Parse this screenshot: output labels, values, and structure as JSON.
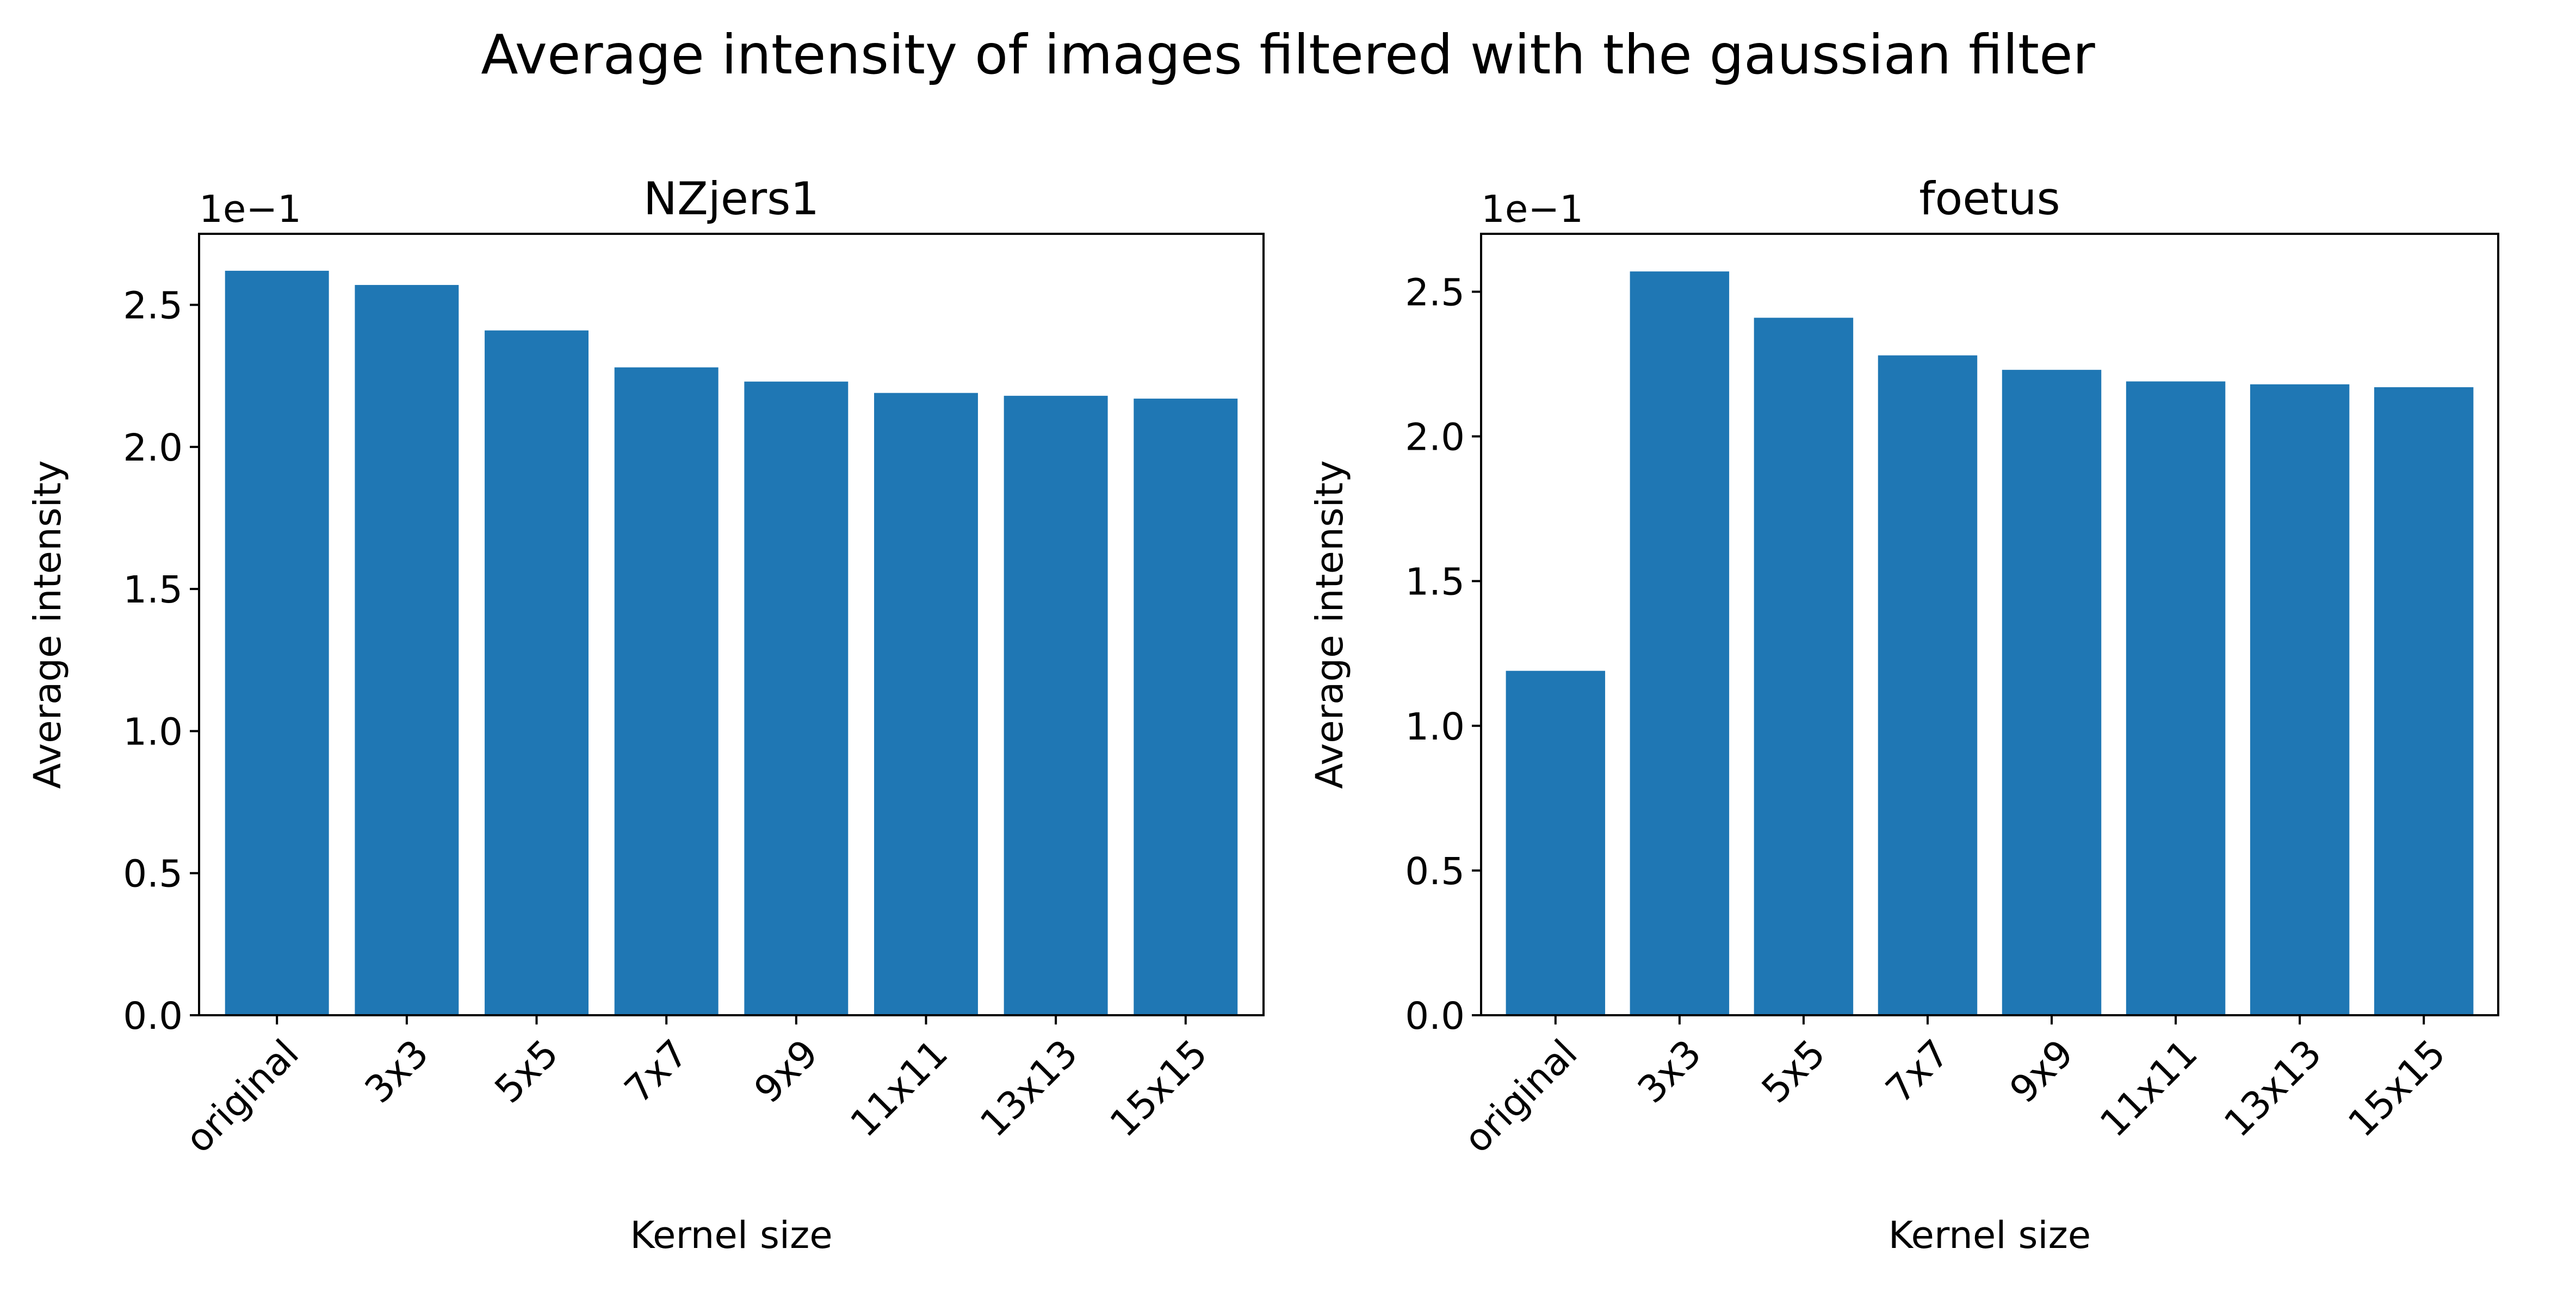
{
  "figure": {
    "title": "Average intensity of images filtered with the gaussian filter",
    "bar_color": "#1f77b4"
  },
  "chart_data": [
    {
      "type": "bar",
      "title": "NZjers1",
      "xlabel": "Kernel size",
      "ylabel": "Average intensity",
      "offset_label": "1e−1",
      "categories": [
        "original",
        "3x3",
        "5x5",
        "7x7",
        "9x9",
        "11x11",
        "13x13",
        "15x15"
      ],
      "values": [
        2.62,
        2.57,
        2.41,
        2.28,
        2.23,
        2.19,
        2.18,
        2.17
      ],
      "ylim": [
        0,
        2.75
      ],
      "yticks": [
        0.0,
        0.5,
        1.0,
        1.5,
        2.0,
        2.5
      ],
      "ytick_labels": [
        "0.0",
        "0.5",
        "1.0",
        "1.5",
        "2.0",
        "2.5"
      ],
      "grid": false
    },
    {
      "type": "bar",
      "title": "foetus",
      "xlabel": "Kernel size",
      "ylabel": "Average intensity",
      "offset_label": "1e−1",
      "categories": [
        "original",
        "3x3",
        "5x5",
        "7x7",
        "9x9",
        "11x11",
        "13x13",
        "15x15"
      ],
      "values": [
        1.19,
        2.57,
        2.41,
        2.28,
        2.23,
        2.19,
        2.18,
        2.17
      ],
      "ylim": [
        0,
        2.7
      ],
      "yticks": [
        0.0,
        0.5,
        1.0,
        1.5,
        2.0,
        2.5
      ],
      "ytick_labels": [
        "0.0",
        "0.5",
        "1.0",
        "1.5",
        "2.0",
        "2.5"
      ],
      "grid": false
    }
  ]
}
